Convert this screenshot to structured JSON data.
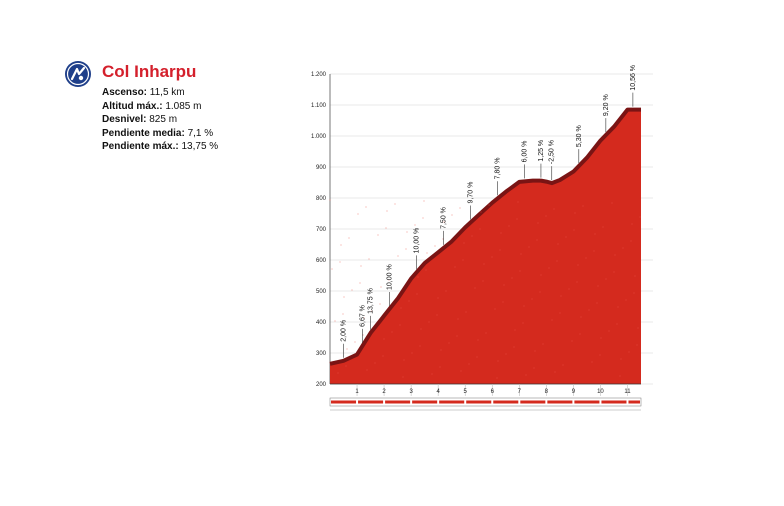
{
  "header": {
    "logo_icon": "cycling-race-logo-icon",
    "title": "Col Inharpu",
    "stats": [
      {
        "label": "Ascenso:",
        "value": "11,5 km"
      },
      {
        "label": "Altitud máx.:",
        "value": "1.085 m"
      },
      {
        "label": "Desnivel:",
        "value": "825 m"
      },
      {
        "label": "Pendiente media:",
        "value": "7,1 %"
      },
      {
        "label": "Pendiente máx.:",
        "value": "13,75 %"
      }
    ]
  },
  "colors": {
    "profile_fill": "#d42a1e",
    "profile_edge": "#7a1414",
    "title_red": "#d4202c",
    "highlight_red": "#e0252b"
  },
  "chart_data": {
    "type": "area",
    "title": "Col Inharpu",
    "xlabel": "",
    "ylabel": "",
    "ylim": [
      200,
      1200
    ],
    "xlim": [
      0,
      11.5
    ],
    "y_ticks": [
      "200",
      "300",
      "400",
      "500",
      "600",
      "700",
      "800",
      "900",
      "1.000",
      "1.100",
      "1.200"
    ],
    "x_ticks": [
      "1",
      "2",
      "3",
      "4",
      "5",
      "6",
      "7",
      "8",
      "9",
      "10",
      "11"
    ],
    "grid": true,
    "series": [
      {
        "x": [
          0,
          0.5,
          1,
          1.5,
          2,
          2.5,
          3,
          3.5,
          4,
          4.5,
          5,
          5.5,
          6,
          6.5,
          7,
          7.5,
          7.8,
          8,
          8.2,
          8.5,
          9,
          9.5,
          10,
          10.5,
          11,
          11.5
        ],
        "y": [
          265,
          275,
          295,
          365,
          420,
          475,
          540,
          590,
          625,
          660,
          705,
          745,
          785,
          820,
          852,
          856,
          856,
          853,
          848,
          858,
          885,
          930,
          985,
          1030,
          1085,
          1085
        ]
      }
    ],
    "gradients": [
      {
        "x": 0.5,
        "label": "2,00 %",
        "highlight": false
      },
      {
        "x": 1.2,
        "label": "6,67 %",
        "highlight": false
      },
      {
        "x": 1.5,
        "label": "13,75 %",
        "highlight": true
      },
      {
        "x": 2.2,
        "label": "10,00 %",
        "highlight": false
      },
      {
        "x": 3.2,
        "label": "10,00 %",
        "highlight": false
      },
      {
        "x": 4.2,
        "label": "7,50 %",
        "highlight": false
      },
      {
        "x": 5.2,
        "label": "9,70 %",
        "highlight": false
      },
      {
        "x": 6.2,
        "label": "7,80 %",
        "highlight": false
      },
      {
        "x": 7.2,
        "label": "6,00 %",
        "highlight": false
      },
      {
        "x": 7.8,
        "label": "1,25 %",
        "highlight": false
      },
      {
        "x": 8.2,
        "label": "-2,50 %",
        "highlight": false
      },
      {
        "x": 9.2,
        "label": "5,30 %",
        "highlight": false
      },
      {
        "x": 10.2,
        "label": "9,20 %",
        "highlight": false
      },
      {
        "x": 11.2,
        "label": "10,56 %",
        "highlight": false
      }
    ]
  }
}
